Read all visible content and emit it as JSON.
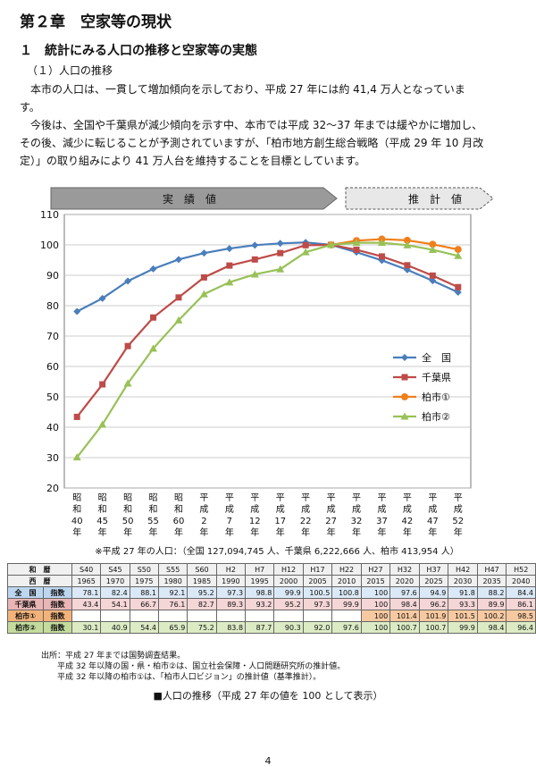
{
  "heading": {
    "chapter": "第２章　空家等の現状",
    "section": "１　統計にみる人口の推移と空家等の実態",
    "subsection": "（１）人口の推移"
  },
  "paragraphs": [
    "本市の人口は、一貫して増加傾向を示しており、平成 27 年には約 41,4 万人となっています。",
    "今後は、全国や千葉県が減少傾向を示す中、本市では平成 32～37 年までは緩やかに増加し、その後、減少に転じることが予測されていますが、「柏市地方創生総合戦略（平成 29 年 10 月改定）」の取り組みにより 41 万人台を維持することを目標としています。"
  ],
  "chart_data": {
    "type": "line",
    "banner_actual": "実　績　値",
    "banner_forecast": "推　計　値",
    "x_labels": [
      "昭和40年",
      "昭和45年",
      "昭和50年",
      "昭和55年",
      "昭和60年",
      "平成2年",
      "平成7年",
      "平成12年",
      "平成17年",
      "平成22年",
      "平成27年",
      "平成32年",
      "平成37年",
      "平成42年",
      "平成47年",
      "平成52年"
    ],
    "ylim": [
      20,
      110
    ],
    "yticks": [
      20,
      30,
      40,
      50,
      60,
      70,
      80,
      90,
      100,
      110
    ],
    "grid": true,
    "legend_position": "right",
    "series": [
      {
        "name": "全　国",
        "color": "#4a7ebb",
        "marker": "diamond",
        "values": [
          78.1,
          82.4,
          88.1,
          92.1,
          95.2,
          97.3,
          98.8,
          99.9,
          100.5,
          100.8,
          100,
          97.6,
          94.9,
          91.8,
          88.2,
          84.4
        ]
      },
      {
        "name": "千葉県",
        "color": "#be4b48",
        "marker": "square",
        "values": [
          43.4,
          54.1,
          66.7,
          76.1,
          82.7,
          89.3,
          93.2,
          95.2,
          97.3,
          99.9,
          100,
          98.4,
          96.2,
          93.3,
          89.9,
          86.1
        ]
      },
      {
        "name": "柏市①",
        "color": "#f07f1b",
        "marker": "circle",
        "values": [
          null,
          null,
          null,
          null,
          null,
          null,
          null,
          null,
          null,
          null,
          100,
          101.4,
          101.9,
          101.5,
          100.2,
          98.5
        ]
      },
      {
        "name": "柏市②",
        "color": "#98c158",
        "marker": "triangle",
        "values": [
          30.1,
          40.9,
          54.4,
          65.9,
          75.2,
          83.8,
          87.7,
          90.3,
          92.0,
          97.6,
          100,
          100.7,
          100.7,
          99.9,
          98.4,
          96.4
        ]
      }
    ]
  },
  "population_note": "※平成 27 年の人口：（全国 127,094,745 人、千葉県 6,222,666 人、柏市 413,954 人）",
  "table": {
    "header_wareki_label": "和　暦",
    "header_seireki_label": "西　暦",
    "wareki": [
      "S40",
      "S45",
      "S50",
      "S55",
      "S60",
      "H2",
      "H7",
      "H12",
      "H17",
      "H22",
      "H27",
      "H32",
      "H37",
      "H42",
      "H47",
      "H52"
    ],
    "seireki": [
      "1965",
      "1970",
      "1975",
      "1980",
      "1985",
      "1990",
      "1995",
      "2000",
      "2005",
      "2010",
      "2015",
      "2020",
      "2025",
      "2030",
      "2035",
      "2040"
    ],
    "index_label": "指数",
    "rows": [
      {
        "label": "全　国",
        "values": [
          "78.1",
          "82.4",
          "88.1",
          "92.1",
          "95.2",
          "97.3",
          "98.8",
          "99.9",
          "100.5",
          "100.8",
          "100",
          "97.6",
          "94.9",
          "91.8",
          "88.2",
          "84.4"
        ]
      },
      {
        "label": "千葉県",
        "values": [
          "43.4",
          "54.1",
          "66.7",
          "76.1",
          "82.7",
          "89.3",
          "93.2",
          "95.2",
          "97.3",
          "99.9",
          "100",
          "98.4",
          "96.2",
          "93.3",
          "89.9",
          "86.1"
        ]
      },
      {
        "label": "柏市①",
        "values": [
          "",
          "",
          "",
          "",
          "",
          "",
          "",
          "",
          "",
          "",
          "100",
          "101.4",
          "101.9",
          "101.5",
          "100.2",
          "98.5"
        ]
      },
      {
        "label": "柏市②",
        "values": [
          "30.1",
          "40.9",
          "54.4",
          "65.9",
          "75.2",
          "83.8",
          "87.7",
          "90.3",
          "92.0",
          "97.6",
          "100",
          "100.7",
          "100.7",
          "99.9",
          "98.4",
          "96.4"
        ]
      }
    ]
  },
  "source_lines": [
    "出所：平成 27 年までは国勢調査結果。",
    "平成 32 年以降の国・県・柏市②は、国立社会保障・人口問題研究所の推計値。",
    "平成 32 年以降の柏市①は、「柏市人口ビジョン」の推計値（基準推計）。"
  ],
  "caption": "■人口の推移（平成 27 年の値を 100 として表示）",
  "page_number": "4"
}
